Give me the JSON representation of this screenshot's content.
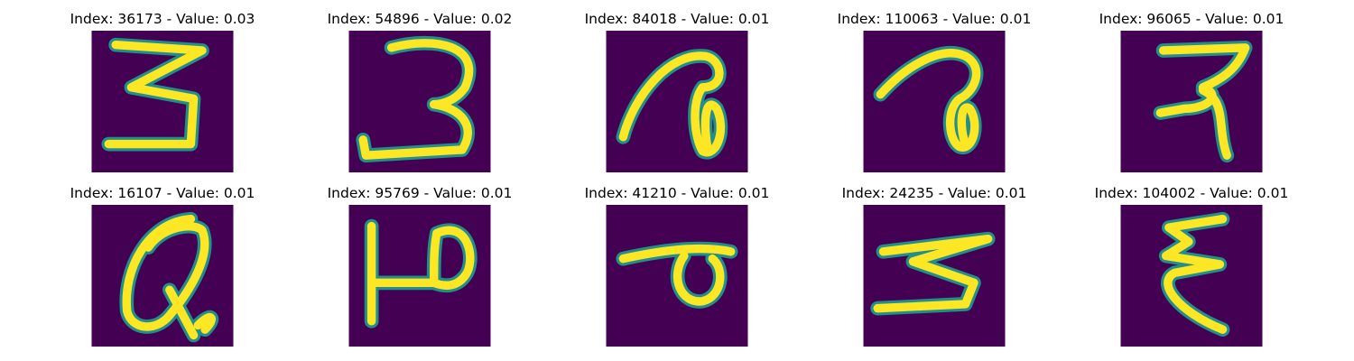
{
  "colors": {
    "background": "#440154",
    "edge": "#21908d",
    "stroke": "#fde725"
  },
  "panels": [
    {
      "title": "Index: 36173 - Value: 0.03",
      "glyph": "three-open"
    },
    {
      "title": "Index: 54896 - Value: 0.02",
      "glyph": "three"
    },
    {
      "title": "Index: 84018 - Value: 0.01",
      "glyph": "loop-hook"
    },
    {
      "title": "Index: 110063 - Value: 0.01",
      "glyph": "loop-hook"
    },
    {
      "title": "Index: 96065 - Value: 0.01",
      "glyph": "reverse-z"
    },
    {
      "title": "Index: 16107 - Value: 0.01",
      "glyph": "oval-loop"
    },
    {
      "title": "Index: 95769 - Value: 0.01",
      "glyph": "p-bar"
    },
    {
      "title": "Index: 41210 - Value: 0.01",
      "glyph": "bar-loop"
    },
    {
      "title": "Index: 24235 - Value: 0.01",
      "glyph": "zigzag"
    },
    {
      "title": "Index: 104002 - Value: 0.01",
      "glyph": "epsilon"
    }
  ]
}
